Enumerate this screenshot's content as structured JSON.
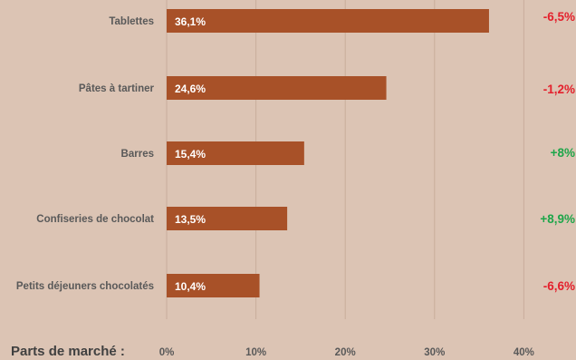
{
  "chart_data": {
    "type": "bar",
    "orientation": "horizontal",
    "categories": [
      "Tablettes",
      "Pâtes à tartiner",
      "Barres",
      "Confiseries de chocolat",
      "Petits déjeuners chocolatés"
    ],
    "values": [
      36.1,
      24.6,
      15.4,
      13.5,
      10.4
    ],
    "value_labels": [
      "36,1%",
      "24,6%",
      "15,4%",
      "13,5%",
      "10,4%"
    ],
    "changes": [
      "-6,5%",
      "-1,2%",
      "+8%",
      "+8,9%",
      "-6,6%"
    ],
    "xlabel": "Parts de marché :",
    "x_ticks": [
      "0%",
      "10%",
      "20%",
      "30%",
      "40%"
    ],
    "xlim": [
      0,
      40
    ],
    "grid": true,
    "colors": {
      "background": "#dcc4b4",
      "bar": "#a85128",
      "negative": "#e4202c",
      "positive": "#1ea64a",
      "text": "#595959"
    }
  }
}
